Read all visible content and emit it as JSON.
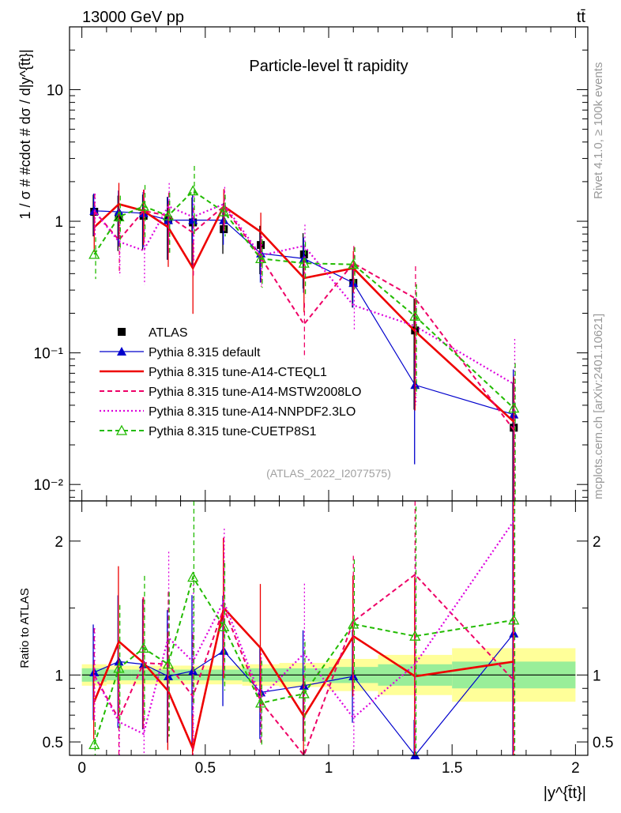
{
  "header": {
    "energy_label": "13000 GeV pp",
    "process_label": "tt̄"
  },
  "side_labels": {
    "rivet": "Rivet 4.1.0, ≥ 100k events",
    "source": "mcplots.cern.ch [arXiv:2401.10621]"
  },
  "chart_data": [
    {
      "type": "line",
      "title": "Particle-level t̄t rapidity",
      "watermark": "(ATLAS_2022_I2077575)",
      "ylabel": "1 / σ # #cdot # dσ / d|y^{t̄t}|",
      "yscale": "log",
      "ylim": [
        0.0075,
        30
      ],
      "xlim": [
        -0.05,
        2.05
      ],
      "y_tick_labels": [
        "10⁻²",
        "10⁻¹",
        "1",
        "10"
      ],
      "legend_position": "center-left",
      "x": [
        0.05,
        0.15,
        0.25,
        0.35,
        0.45,
        0.575,
        0.725,
        0.9,
        1.1,
        1.35,
        1.75
      ],
      "series": [
        {
          "name": "ATLAS",
          "color": "#000000",
          "style": "data",
          "values": [
            1.18,
            1.08,
            1.1,
            1.02,
            0.98,
            0.87,
            0.66,
            0.56,
            0.34,
            0.148,
            0.027
          ]
        },
        {
          "name": "Pythia 8.315 default",
          "color": "#0000cc",
          "style": "solid-thin",
          "marker": "filled-triangle",
          "values": [
            1.2,
            1.18,
            1.15,
            1.02,
            1.02,
            1.02,
            0.57,
            0.52,
            0.34,
            0.057,
            0.034
          ]
        },
        {
          "name": "Pythia 8.315 tune-A14-CTEQL1",
          "color": "#ee0000",
          "style": "solid-thick",
          "values": [
            0.9,
            1.35,
            1.2,
            0.9,
            0.44,
            1.3,
            0.83,
            0.37,
            0.44,
            0.146,
            0.03
          ]
        },
        {
          "name": "Pythia 8.315 tune-A14-MSTW2008LO",
          "color": "#ee0066",
          "style": "dashed",
          "values": [
            1.2,
            0.72,
            1.2,
            1.1,
            0.82,
            1.3,
            0.53,
            0.165,
            0.48,
            0.26,
            0.026
          ]
        },
        {
          "name": "Pythia 8.315 tune-A14-NNPDF2.3LO",
          "color": "#dd00dd",
          "style": "dotted",
          "values": [
            1.2,
            0.7,
            0.6,
            1.3,
            1.08,
            1.35,
            0.55,
            0.65,
            0.23,
            0.16,
            0.058
          ]
        },
        {
          "name": "Pythia 8.315 tune-CUETP8S1",
          "color": "#22bb00",
          "style": "dashed",
          "marker": "open-triangle",
          "values": [
            0.56,
            1.08,
            1.3,
            1.1,
            1.7,
            1.18,
            0.52,
            0.48,
            0.47,
            0.19,
            0.038
          ]
        }
      ]
    },
    {
      "type": "line",
      "ylabel": "Ratio to ATLAS",
      "xlabel": "|y^{t̄t}|",
      "ylim": [
        0.4,
        2.3
      ],
      "xlim": [
        -0.05,
        2.05
      ],
      "x_tick_labels": [
        "0",
        "0.5",
        "1",
        "1.5",
        "2"
      ],
      "y_tick_labels": [
        "0.5",
        "1",
        "2"
      ],
      "bands": {
        "edges": [
          0,
          0.1,
          0.2,
          0.3,
          0.4,
          0.5,
          0.65,
          0.8,
          1.0,
          1.2,
          1.5,
          2.0
        ],
        "inner": [
          0.05,
          0.04,
          0.04,
          0.04,
          0.04,
          0.04,
          0.05,
          0.05,
          0.06,
          0.08,
          0.1,
          0.1
        ],
        "outer": [
          0.08,
          0.07,
          0.07,
          0.07,
          0.07,
          0.07,
          0.08,
          0.09,
          0.12,
          0.15,
          0.2,
          0.2
        ]
      },
      "x": [
        0.05,
        0.15,
        0.25,
        0.35,
        0.45,
        0.575,
        0.725,
        0.9,
        1.1,
        1.35,
        1.75
      ],
      "series": [
        {
          "name": "Pythia 8.315 default",
          "values": [
            1.02,
            1.1,
            1.08,
            0.99,
            1.03,
            1.18,
            0.87,
            0.92,
            0.99,
            0.38,
            1.31
          ]
        },
        {
          "name": "Pythia 8.315 tune-A14-CTEQL1",
          "values": [
            0.8,
            1.25,
            1.09,
            0.88,
            0.45,
            1.5,
            1.2,
            0.69,
            1.29,
            0.99,
            1.1
          ]
        },
        {
          "name": "Pythia 8.315 tune-A14-MSTW2008LO",
          "values": [
            1.0,
            0.67,
            1.09,
            1.08,
            0.84,
            1.5,
            0.8,
            0.3,
            1.4,
            1.75,
            0.96
          ]
        },
        {
          "name": "Pythia 8.315 tune-A14-NNPDF2.3LO",
          "values": [
            1.0,
            0.65,
            0.56,
            1.28,
            1.1,
            1.55,
            0.83,
            1.16,
            0.68,
            1.08,
            2.15
          ]
        },
        {
          "name": "Pythia 8.315 tune-CUETP8S1",
          "values": [
            0.48,
            1.05,
            1.2,
            1.08,
            1.73,
            1.36,
            0.79,
            0.86,
            1.38,
            1.29,
            1.41
          ]
        }
      ]
    }
  ]
}
